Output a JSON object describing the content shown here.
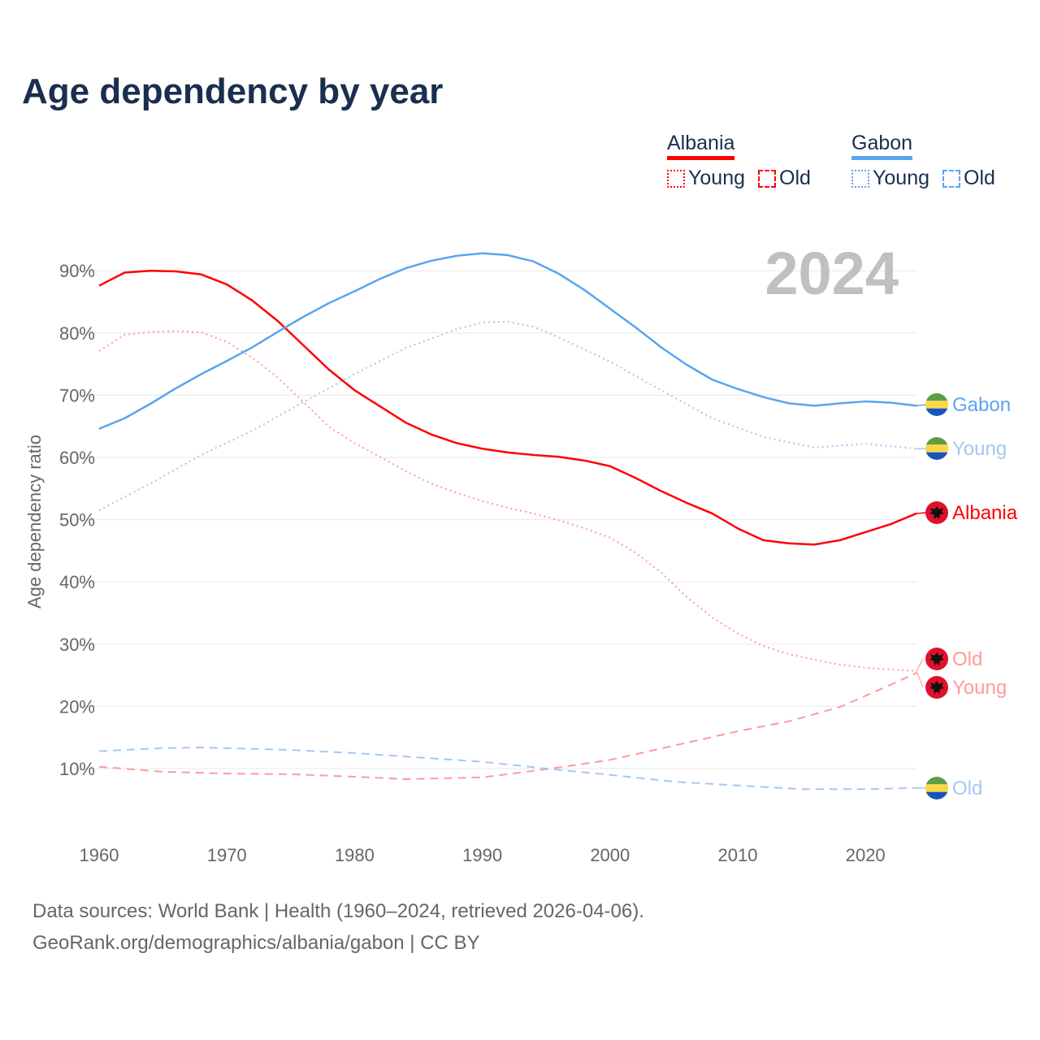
{
  "title": "Age dependency by year",
  "legend": {
    "albania": {
      "label": "Albania",
      "young": "Young",
      "old": "Old"
    },
    "gabon": {
      "label": "Gabon",
      "young": "Young",
      "old": "Old"
    }
  },
  "colors": {
    "albania": "#ff0000",
    "albania_light": "#ff9a9a",
    "gabon": "#5aa5ee",
    "gabon_light": "#a3c9f2"
  },
  "footer": {
    "line1": "Data sources: World Bank | Health (1960–2024, retrieved 2026-04-06).",
    "line2": "GeoRank.org/demographics/albania/gabon | CC BY"
  },
  "chart_data": {
    "type": "line",
    "title": "Age dependency by year",
    "year_label": "2024",
    "ylabel": "Age dependency ratio",
    "xlim": [
      1960,
      2024
    ],
    "ylim": [
      0,
      95
    ],
    "x_ticks": [
      "1960",
      "1970",
      "1980",
      "1990",
      "2000",
      "2010",
      "2020"
    ],
    "y_ticks": [
      "10%",
      "20%",
      "30%",
      "40%",
      "50%",
      "60%",
      "70%",
      "80%",
      "90%"
    ],
    "series": [
      {
        "name": "Albania",
        "end_label": "Albania",
        "country": "albania",
        "style": "solid",
        "color": "#ff0000",
        "x": [
          1960,
          1962,
          1964,
          1966,
          1968,
          1970,
          1972,
          1974,
          1976,
          1978,
          1980,
          1982,
          1984,
          1986,
          1988,
          1990,
          1992,
          1994,
          1996,
          1998,
          2000,
          2002,
          2004,
          2006,
          2008,
          2010,
          2012,
          2014,
          2016,
          2018,
          2020,
          2022,
          2024
        ],
        "y": [
          87.6,
          89.7,
          90.0,
          89.9,
          89.4,
          87.8,
          85.2,
          81.9,
          78.0,
          74.1,
          70.8,
          68.2,
          65.6,
          63.7,
          62.3,
          61.4,
          60.8,
          60.4,
          60.1,
          59.5,
          58.6,
          56.7,
          54.6,
          52.7,
          51.0,
          48.6,
          46.7,
          46.2,
          46.0,
          46.7,
          48.0,
          49.3,
          51.0
        ]
      },
      {
        "name": "Albania Young",
        "end_label": "Young",
        "country": "albania",
        "style": "dotted",
        "color": "#ff9a9a",
        "x": [
          1960,
          1962,
          1964,
          1966,
          1968,
          1970,
          1972,
          1974,
          1976,
          1978,
          1980,
          1982,
          1984,
          1986,
          1988,
          1990,
          1992,
          1994,
          1996,
          1998,
          2000,
          2002,
          2004,
          2006,
          2008,
          2010,
          2012,
          2014,
          2016,
          2018,
          2020,
          2022,
          2024
        ],
        "y": [
          77.1,
          79.7,
          80.2,
          80.3,
          80.1,
          78.6,
          76.0,
          72.8,
          68.9,
          64.9,
          62.3,
          60.1,
          57.8,
          55.8,
          54.3,
          53.0,
          51.9,
          51.0,
          49.9,
          48.6,
          47.1,
          44.7,
          41.5,
          37.6,
          34.3,
          31.7,
          29.7,
          28.4,
          27.5,
          26.7,
          26.2,
          25.9,
          25.7
        ]
      },
      {
        "name": "Albania Old",
        "end_label": "Old",
        "country": "albania",
        "style": "dashed",
        "color": "#ff9a9a",
        "x": [
          1960,
          1965,
          1970,
          1975,
          1980,
          1984,
          1990,
          1995,
          2000,
          2005,
          2010,
          2014,
          2018,
          2022,
          2024
        ],
        "y": [
          10.3,
          9.5,
          9.2,
          9.1,
          8.7,
          8.3,
          8.6,
          9.9,
          11.4,
          13.7,
          16.0,
          17.6,
          19.9,
          23.5,
          25.4
        ]
      },
      {
        "name": "Gabon",
        "end_label": "Gabon",
        "country": "gabon",
        "style": "solid",
        "color": "#5aa5ee",
        "x": [
          1960,
          1962,
          1964,
          1966,
          1968,
          1970,
          1972,
          1974,
          1976,
          1978,
          1980,
          1982,
          1984,
          1986,
          1988,
          1990,
          1992,
          1994,
          1996,
          1998,
          2000,
          2002,
          2004,
          2006,
          2008,
          2010,
          2012,
          2014,
          2016,
          2018,
          2020,
          2022,
          2024
        ],
        "y": [
          64.6,
          66.3,
          68.6,
          71.1,
          73.4,
          75.5,
          77.7,
          80.2,
          82.6,
          84.8,
          86.7,
          88.7,
          90.4,
          91.6,
          92.4,
          92.8,
          92.5,
          91.5,
          89.5,
          86.9,
          83.9,
          80.9,
          77.7,
          74.9,
          72.5,
          71.0,
          69.7,
          68.7,
          68.3,
          68.7,
          69.0,
          68.8,
          68.3
        ]
      },
      {
        "name": "Gabon Young",
        "end_label": "Young",
        "country": "gabon",
        "style": "dotted",
        "color": "#a3c9f2",
        "x": [
          1960,
          1964,
          1968,
          1972,
          1976,
          1980,
          1984,
          1988,
          1990,
          1992,
          1994,
          1996,
          2000,
          2004,
          2008,
          2012,
          2016,
          2020,
          2024
        ],
        "y": [
          51.5,
          55.8,
          60.4,
          64.3,
          68.9,
          73.4,
          77.6,
          80.6,
          81.7,
          81.8,
          81.0,
          79.3,
          75.4,
          70.8,
          66.3,
          63.3,
          61.6,
          62.2,
          61.4
        ]
      },
      {
        "name": "Gabon Old",
        "end_label": "Old",
        "country": "gabon",
        "style": "dashed",
        "color": "#a3c9f2",
        "x": [
          1960,
          1965,
          1968,
          1975,
          1980,
          1985,
          1990,
          1995,
          2000,
          2005,
          2010,
          2015,
          2020,
          2024
        ],
        "y": [
          12.8,
          13.3,
          13.4,
          13.0,
          12.5,
          11.8,
          11.1,
          10.0,
          9.0,
          7.9,
          7.3,
          6.7,
          6.7,
          6.9
        ]
      }
    ]
  }
}
